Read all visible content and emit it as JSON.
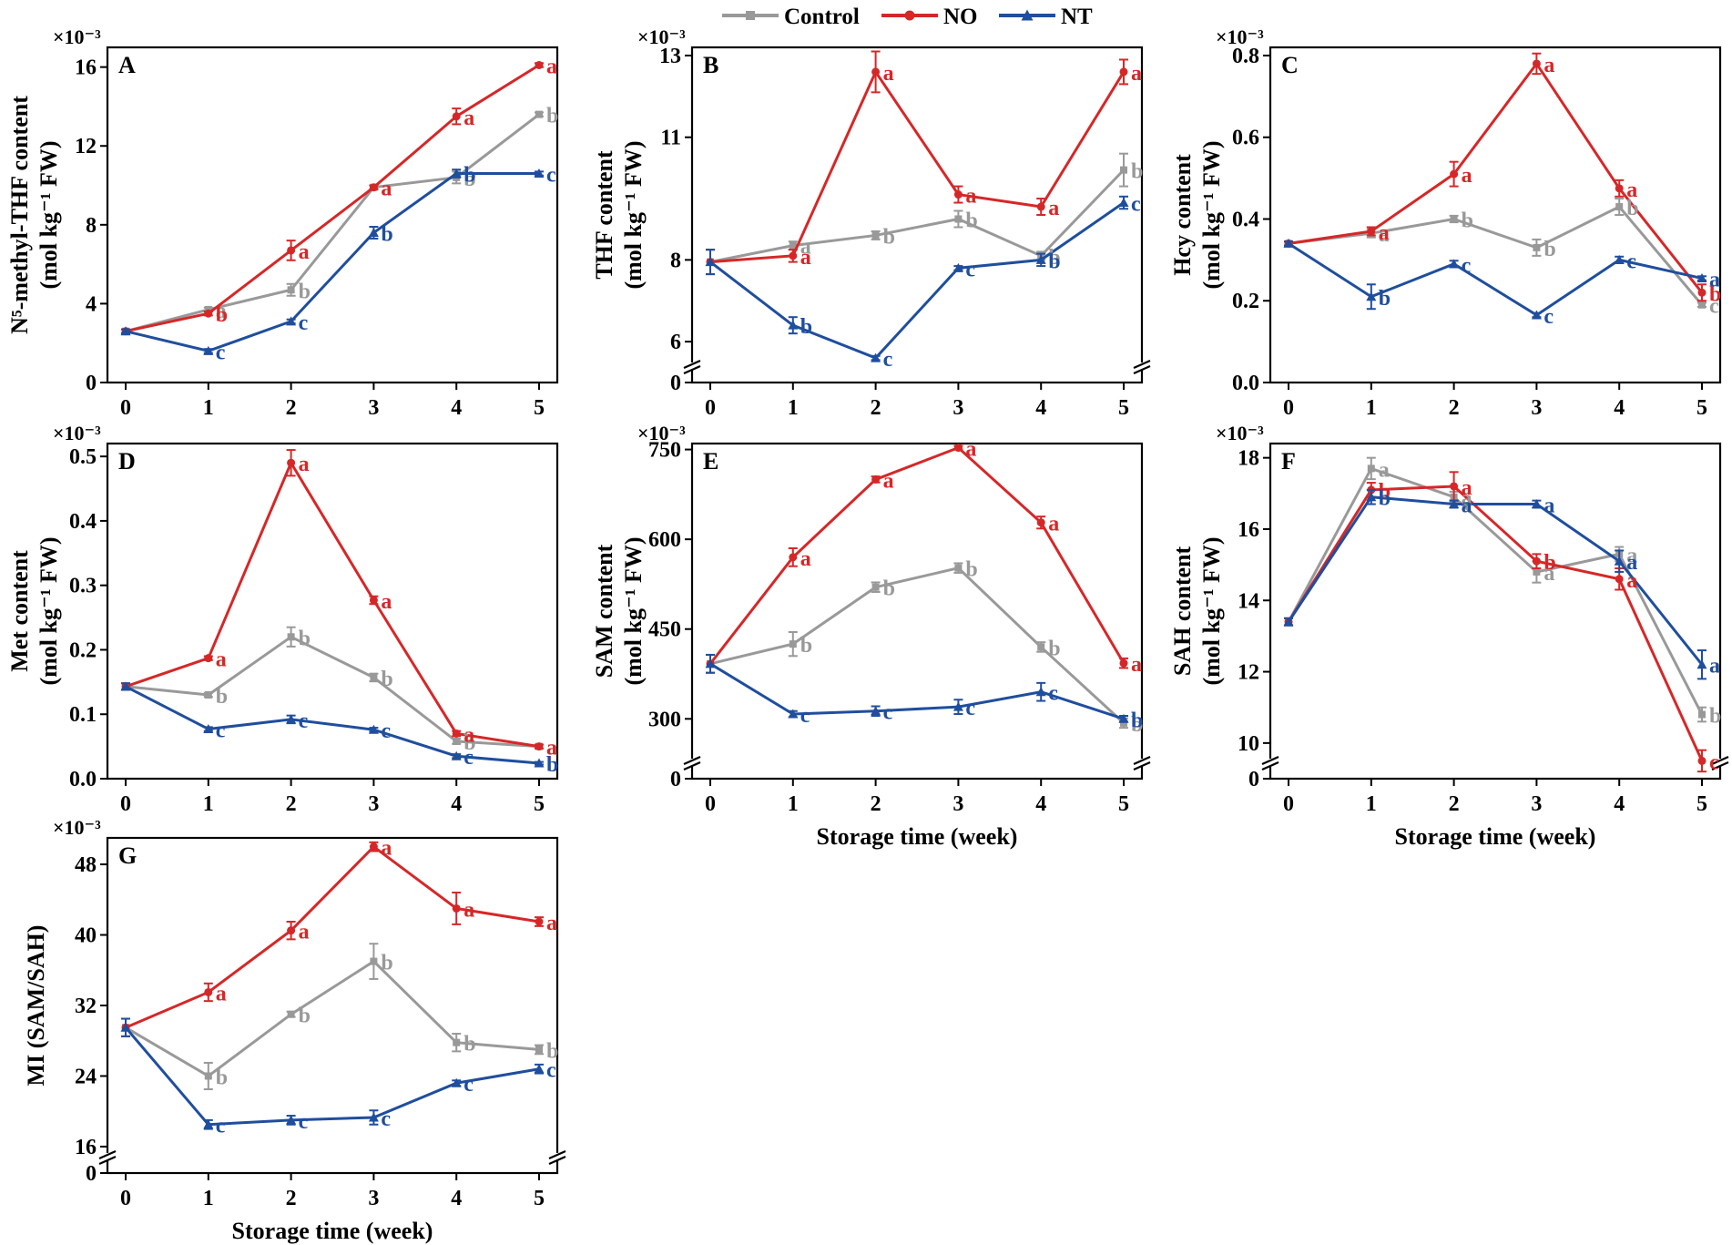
{
  "legend": {
    "items": [
      {
        "name": "Control",
        "color": "#999999",
        "marker": "square"
      },
      {
        "name": "NO",
        "color": "#d62728",
        "marker": "circle"
      },
      {
        "name": "NT",
        "color": "#1f4e9e",
        "marker": "triangle"
      }
    ]
  },
  "exponent_label": "×10⁻³",
  "chart_data": [
    {
      "id": "A",
      "type": "line",
      "panel": "A",
      "ylabel_lines": [
        "N⁵-methyl-THF content",
        "(mol kg⁻¹ FW)"
      ],
      "xlabel": "",
      "x": [
        0,
        1,
        2,
        3,
        4,
        5
      ],
      "ylim": [
        0,
        17
      ],
      "yticks": [
        0,
        4,
        8,
        12,
        16
      ],
      "ytick_labels": [
        "0",
        "4",
        "8",
        "12",
        "16"
      ],
      "axis_break": false,
      "series": [
        {
          "name": "Control",
          "values": [
            2.6,
            3.7,
            4.7,
            9.9,
            10.4,
            13.6
          ],
          "errors": [
            0.1,
            0.1,
            0.3,
            0.1,
            0.3,
            0.1
          ],
          "letters": [
            "",
            "a",
            "b",
            "a",
            "b",
            "b"
          ]
        },
        {
          "name": "NO",
          "values": [
            2.6,
            3.5,
            6.7,
            9.9,
            13.5,
            16.1
          ],
          "errors": [
            0.1,
            0.1,
            0.5,
            0.1,
            0.4,
            0.1
          ],
          "letters": [
            "",
            "b",
            "a",
            "a",
            "a",
            "a"
          ]
        },
        {
          "name": "NT",
          "values": [
            2.6,
            1.6,
            3.1,
            7.6,
            10.6,
            10.6
          ],
          "errors": [
            0.1,
            0.1,
            0.1,
            0.3,
            0.2,
            0.1
          ],
          "letters": [
            "",
            "c",
            "c",
            "b",
            "b",
            "c"
          ]
        }
      ]
    },
    {
      "id": "B",
      "type": "line",
      "panel": "B",
      "ylabel_lines": [
        "THF content",
        "(mol kg⁻¹ FW)"
      ],
      "xlabel": "",
      "x": [
        0,
        1,
        2,
        3,
        4,
        5
      ],
      "ylim": [
        5,
        13.2
      ],
      "yticks": [
        6,
        8,
        11,
        13
      ],
      "ytick_labels": [
        "6",
        "8",
        "11",
        "13"
      ],
      "axis_break": true,
      "series": [
        {
          "name": "Control",
          "values": [
            7.95,
            8.35,
            8.6,
            9.0,
            8.1,
            10.2
          ],
          "errors": [
            0.3,
            0.1,
            0.1,
            0.2,
            0.1,
            0.4
          ],
          "letters": [
            "",
            "a",
            "b",
            "b",
            "b",
            "b"
          ]
        },
        {
          "name": "NO",
          "values": [
            7.95,
            8.1,
            12.6,
            9.6,
            9.3,
            12.6
          ],
          "errors": [
            0.3,
            0.15,
            0.5,
            0.2,
            0.2,
            0.3
          ],
          "letters": [
            "",
            "a",
            "a",
            "a",
            "a",
            "a"
          ]
        },
        {
          "name": "NT",
          "values": [
            7.95,
            6.4,
            5.6,
            7.8,
            8.0,
            9.4
          ],
          "errors": [
            0.3,
            0.2,
            0.05,
            0.05,
            0.15,
            0.15
          ],
          "letters": [
            "",
            "b",
            "c",
            "c",
            "b",
            "c"
          ]
        }
      ]
    },
    {
      "id": "C",
      "type": "line",
      "panel": "C",
      "ylabel_lines": [
        "Hcy content",
        "(mol kg⁻¹ FW)"
      ],
      "xlabel": "",
      "x": [
        0,
        1,
        2,
        3,
        4,
        5
      ],
      "ylim": [
        0,
        0.82
      ],
      "yticks": [
        0.0,
        0.2,
        0.4,
        0.6,
        0.8
      ],
      "ytick_labels": [
        "0.0",
        "0.2",
        "0.4",
        "0.6",
        "0.8"
      ],
      "axis_break": false,
      "series": [
        {
          "name": "Control",
          "values": [
            0.34,
            0.365,
            0.4,
            0.33,
            0.43,
            0.19
          ],
          "errors": [
            0.005,
            0.01,
            0.008,
            0.02,
            0.02,
            0.005
          ],
          "letters": [
            "",
            "a",
            "b",
            "b",
            "b",
            "c"
          ]
        },
        {
          "name": "NO",
          "values": [
            0.34,
            0.37,
            0.51,
            0.78,
            0.475,
            0.22
          ],
          "errors": [
            0.005,
            0.01,
            0.03,
            0.025,
            0.02,
            0.02
          ],
          "letters": [
            "",
            "a",
            "a",
            "a",
            "a",
            "b"
          ]
        },
        {
          "name": "NT",
          "values": [
            0.34,
            0.21,
            0.29,
            0.165,
            0.3,
            0.255
          ],
          "errors": [
            0.005,
            0.03,
            0.008,
            0.005,
            0.008,
            0.005
          ],
          "letters": [
            "",
            "b",
            "c",
            "c",
            "c",
            "a"
          ]
        }
      ]
    },
    {
      "id": "D",
      "type": "line",
      "panel": "D",
      "ylabel_lines": [
        "Met content",
        "(mol kg⁻¹ FW)"
      ],
      "xlabel": "",
      "x": [
        0,
        1,
        2,
        3,
        4,
        5
      ],
      "ylim": [
        0,
        0.52
      ],
      "yticks": [
        0.0,
        0.1,
        0.2,
        0.3,
        0.4,
        0.5
      ],
      "ytick_labels": [
        "0.0",
        "0.1",
        "0.2",
        "0.3",
        "0.4",
        "0.5"
      ],
      "axis_break": false,
      "series": [
        {
          "name": "Control",
          "values": [
            0.143,
            0.13,
            0.22,
            0.157,
            0.058,
            0.05
          ],
          "errors": [
            0.005,
            0.003,
            0.015,
            0.006,
            0.004,
            0.003
          ],
          "letters": [
            "",
            "b",
            "b",
            "b",
            "b",
            "a"
          ]
        },
        {
          "name": "NO",
          "values": [
            0.143,
            0.187,
            0.49,
            0.277,
            0.07,
            0.05
          ],
          "errors": [
            0.005,
            0.003,
            0.02,
            0.006,
            0.004,
            0.003
          ],
          "letters": [
            "",
            "a",
            "a",
            "a",
            "a",
            "a"
          ]
        },
        {
          "name": "NT",
          "values": [
            0.143,
            0.077,
            0.092,
            0.076,
            0.035,
            0.024
          ],
          "errors": [
            0.005,
            0.003,
            0.006,
            0.003,
            0.003,
            0.002
          ],
          "letters": [
            "",
            "c",
            "c",
            "c",
            "c",
            "b"
          ]
        }
      ]
    },
    {
      "id": "E",
      "type": "line",
      "panel": "E",
      "ylabel_lines": [
        "SAM content",
        "(mol kg⁻¹ FW)"
      ],
      "xlabel": "Storage time (week)",
      "x": [
        0,
        1,
        2,
        3,
        4,
        5
      ],
      "ylim": [
        200,
        760
      ],
      "yticks": [
        300,
        450,
        600,
        750
      ],
      "ytick_labels": [
        "300",
        "450",
        "600",
        "750"
      ],
      "axis_break": true,
      "series": [
        {
          "name": "Control",
          "values": [
            392,
            425,
            520,
            552,
            420,
            293
          ],
          "errors": [
            15,
            20,
            8,
            8,
            8,
            8
          ],
          "letters": [
            "",
            "b",
            "b",
            "b",
            "b",
            "b"
          ]
        },
        {
          "name": "NO",
          "values": [
            392,
            570,
            700,
            753,
            628,
            393
          ],
          "errors": [
            15,
            15,
            5,
            3,
            10,
            8
          ],
          "letters": [
            "",
            "a",
            "a",
            "a",
            "a",
            "a"
          ]
        },
        {
          "name": "NT",
          "values": [
            392,
            308,
            313,
            320,
            345,
            300
          ],
          "errors": [
            15,
            5,
            8,
            12,
            15,
            5
          ],
          "letters": [
            "",
            "c",
            "c",
            "c",
            "c",
            "b"
          ]
        }
      ]
    },
    {
      "id": "F",
      "type": "line",
      "panel": "F",
      "ylabel_lines": [
        "SAH content",
        "(mol kg⁻¹ FW)"
      ],
      "xlabel": "Storage time (week)",
      "x": [
        0,
        1,
        2,
        3,
        4,
        5
      ],
      "ylim": [
        9,
        18.4
      ],
      "yticks": [
        10,
        12,
        14,
        16,
        18
      ],
      "ytick_labels": [
        "10",
        "12",
        "14",
        "16",
        "18"
      ],
      "axis_break": true,
      "series": [
        {
          "name": "Control",
          "values": [
            13.4,
            17.7,
            16.9,
            14.8,
            15.3,
            10.8
          ],
          "errors": [
            0.1,
            0.3,
            0.15,
            0.3,
            0.2,
            0.2
          ],
          "letters": [
            "",
            "a",
            "a",
            "a",
            "a",
            "b"
          ]
        },
        {
          "name": "NO",
          "values": [
            13.4,
            17.1,
            17.2,
            15.1,
            14.6,
            9.5
          ],
          "errors": [
            0.1,
            0.2,
            0.4,
            0.2,
            0.3,
            0.3
          ],
          "letters": [
            "",
            "b",
            "a",
            "b",
            "a",
            "c"
          ]
        },
        {
          "name": "NT",
          "values": [
            13.4,
            16.9,
            16.7,
            16.7,
            15.1,
            12.2
          ],
          "errors": [
            0.1,
            0.2,
            0.1,
            0.1,
            0.3,
            0.4
          ],
          "letters": [
            "",
            "b",
            "a",
            "a",
            "a",
            "a"
          ]
        }
      ]
    },
    {
      "id": "G",
      "type": "line",
      "panel": "G",
      "ylabel_lines": [
        "MI (SAM/SAH)"
      ],
      "xlabel": "Storage time (week)",
      "x": [
        0,
        1,
        2,
        3,
        4,
        5
      ],
      "ylim": [
        13,
        51
      ],
      "yticks": [
        16,
        24,
        32,
        40,
        48
      ],
      "ytick_labels": [
        "16",
        "24",
        "32",
        "40",
        "48"
      ],
      "axis_break": true,
      "series": [
        {
          "name": "Control",
          "values": [
            29.5,
            24.0,
            31.0,
            37.0,
            27.8,
            27.0
          ],
          "errors": [
            1.0,
            1.5,
            0.3,
            2.0,
            1.0,
            0.5
          ],
          "letters": [
            "",
            "b",
            "b",
            "b",
            "b",
            "b"
          ]
        },
        {
          "name": "NO",
          "values": [
            29.5,
            33.5,
            40.5,
            50.0,
            43.0,
            41.5
          ],
          "errors": [
            1.0,
            1.0,
            1.0,
            0.5,
            1.8,
            0.5
          ],
          "letters": [
            "",
            "a",
            "a",
            "a",
            "a",
            "a"
          ]
        },
        {
          "name": "NT",
          "values": [
            29.5,
            18.5,
            19.0,
            19.3,
            23.2,
            24.8
          ],
          "errors": [
            1.0,
            0.5,
            0.5,
            0.8,
            0.3,
            0.5
          ],
          "letters": [
            "",
            "c",
            "c",
            "c",
            "c",
            "c"
          ]
        }
      ]
    }
  ]
}
